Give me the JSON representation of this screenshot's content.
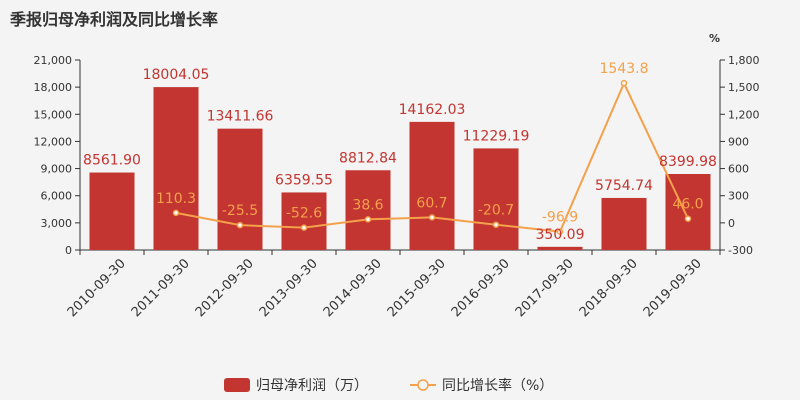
{
  "chart_data": {
    "title": "季报归母净利润及同比增长率",
    "type": "bar",
    "categories": [
      "2010-09-30",
      "2011-09-30",
      "2012-09-30",
      "2013-09-30",
      "2014-09-30",
      "2015-09-30",
      "2016-09-30",
      "2017-09-30",
      "2018-09-30",
      "2019-09-30"
    ],
    "series": [
      {
        "name": "归母净利润（万）",
        "type": "bar",
        "color": "#c23531",
        "values": [
          8561.9,
          18004.05,
          13411.66,
          6359.55,
          8812.84,
          14162.03,
          11229.19,
          350.09,
          5754.74,
          8399.98
        ],
        "labels": [
          "8561.90",
          "18004.05",
          "13411.66",
          "6359.55",
          "8812.84",
          "14162.03",
          "11229.19",
          "350.09",
          "5754.74",
          "8399.98"
        ],
        "axis": "left"
      },
      {
        "name": "同比增长率（%）",
        "type": "line",
        "color": "#f5a04a",
        "values": [
          null,
          110.3,
          -25.5,
          -52.6,
          38.6,
          60.7,
          -20.7,
          -96.9,
          1543.8,
          46.0
        ],
        "labels": [
          "",
          "110.3",
          "-25.5",
          "-52.6",
          "38.6",
          "60.7",
          "-20.7",
          "-96.9",
          "1543.8",
          "46.0"
        ],
        "axis": "right"
      }
    ],
    "yleft": {
      "min": 0,
      "max": 21000,
      "ticks": [
        "0",
        "3,000",
        "6,000",
        "9,000",
        "12,000",
        "15,000",
        "18,000",
        "21,000"
      ]
    },
    "yright": {
      "min": -300,
      "max": 1800,
      "ticks": [
        "-300",
        "0",
        "300",
        "600",
        "900",
        "1,200",
        "1,500",
        "1,800"
      ],
      "unit": "%"
    },
    "legend_position": "bottom-center",
    "grid": true
  }
}
